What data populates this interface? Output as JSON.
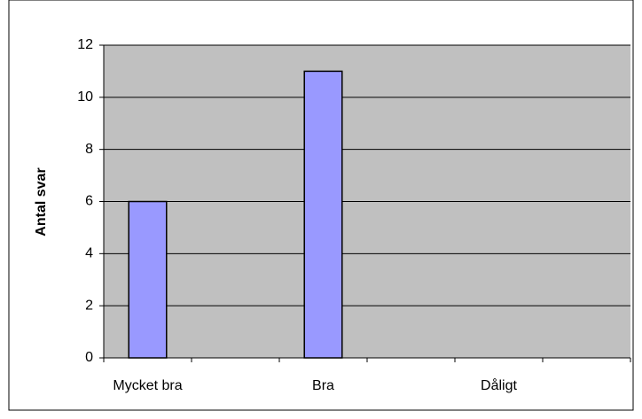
{
  "chart_data": {
    "type": "bar",
    "y_label": "Antal svar",
    "categories": [
      "Mycket bra",
      null,
      "Bra",
      null,
      "Dåligt",
      null
    ],
    "values": [
      6,
      null,
      11,
      null,
      0,
      null
    ],
    "color": "#9999ff",
    "ylim": [
      0,
      12
    ],
    "yticks": [
      0,
      2,
      4,
      6,
      8,
      10,
      12
    ],
    "grid": true
  }
}
